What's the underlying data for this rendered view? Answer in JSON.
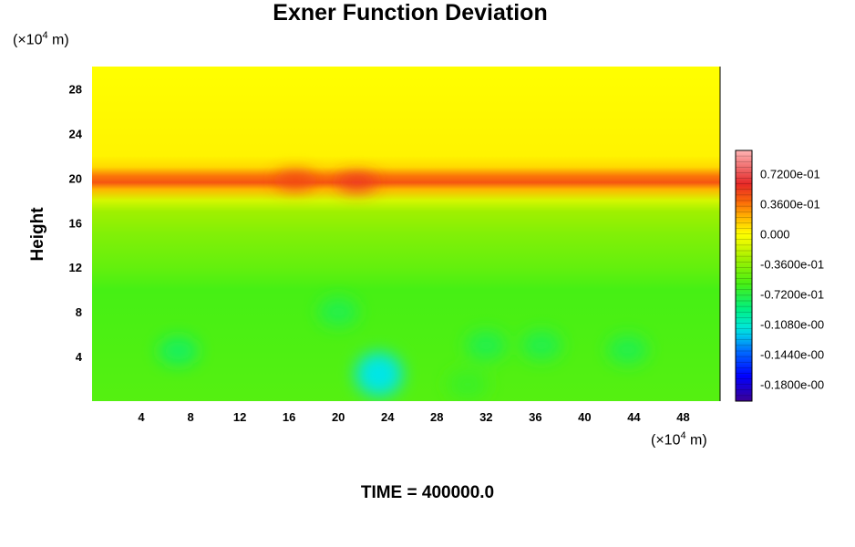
{
  "title": "Exner Function Deviation",
  "time_label": "TIME = 400000.0",
  "unit_y": {
    "prefix": "(×10",
    "exp": "4",
    "suffix": " m)"
  },
  "unit_x": {
    "prefix": "(×10",
    "exp": "4",
    "suffix": " m)"
  },
  "chart_data": {
    "type": "heatmap",
    "title": "Exner Function Deviation",
    "xlabel": "",
    "ylabel": "Height",
    "x_unit": "(×10⁴ m)",
    "y_unit": "(×10⁴ m)",
    "xlim": [
      0,
      51
    ],
    "ylim": [
      0,
      30
    ],
    "x_ticks": [
      4,
      8,
      12,
      16,
      20,
      24,
      28,
      32,
      36,
      40,
      44,
      48
    ],
    "y_ticks": [
      4,
      8,
      12,
      16,
      20,
      24,
      28
    ],
    "colorbar": {
      "range": [
        -0.2,
        0.1
      ],
      "labels": [
        "0.7200e-01",
        "0.3600e-01",
        "0.000",
        "-0.3600e-01",
        "-0.7200e-01",
        "-0.1080e-00",
        "-0.1440e-00",
        "-0.1800e-00"
      ],
      "label_values": [
        0.072,
        0.036,
        0.0,
        -0.036,
        -0.072,
        -0.108,
        -0.144,
        -0.18
      ]
    },
    "vertical_profile": {
      "height": [
        0,
        10,
        12,
        15,
        17,
        18,
        19,
        19.6,
        20.2,
        21,
        22,
        30
      ],
      "value": [
        -0.055,
        -0.06,
        -0.05,
        -0.04,
        -0.03,
        -0.015,
        0.02,
        0.045,
        0.035,
        0.01,
        0.003,
        0.0
      ]
    },
    "features": [
      {
        "x": 23.3,
        "y": 2.4,
        "value": -0.115
      },
      {
        "x": 7,
        "y": 4.5,
        "value": -0.08
      },
      {
        "x": 20,
        "y": 8,
        "value": -0.075
      },
      {
        "x": 32,
        "y": 5,
        "value": -0.075
      },
      {
        "x": 36.5,
        "y": 5,
        "value": -0.075
      },
      {
        "x": 43.5,
        "y": 4.6,
        "value": -0.075
      },
      {
        "x": 30.5,
        "y": 1.5,
        "value": -0.065
      },
      {
        "x": 21.5,
        "y": 19.6,
        "value": 0.055
      },
      {
        "x": 16.5,
        "y": 19.8,
        "value": 0.05
      }
    ]
  }
}
